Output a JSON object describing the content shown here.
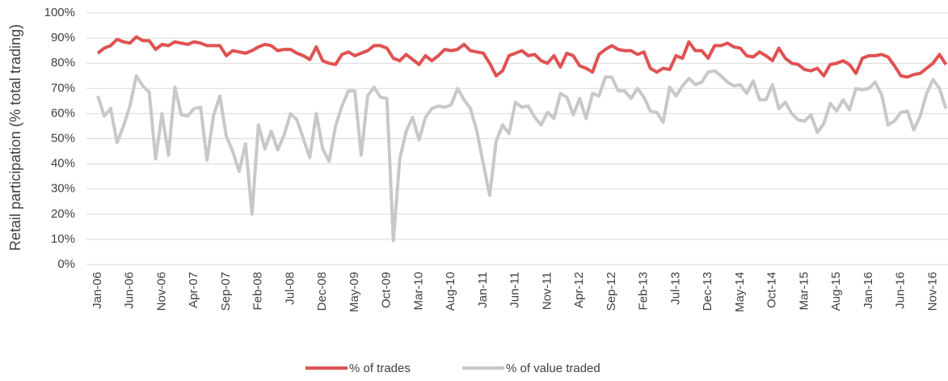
{
  "chart_data": {
    "type": "line",
    "y_label": "Retail participation (% total trading)",
    "categories": [
      "Jan-06",
      null,
      null,
      null,
      null,
      "Jun-06",
      null,
      null,
      null,
      null,
      "Nov-06",
      null,
      null,
      null,
      null,
      "Apr-07",
      null,
      null,
      null,
      null,
      "Sep-07",
      null,
      null,
      null,
      null,
      "Feb-08",
      null,
      null,
      null,
      null,
      "Jul-08",
      null,
      null,
      null,
      null,
      "Dec-08",
      null,
      null,
      null,
      null,
      "May-09",
      null,
      null,
      null,
      null,
      "Oct-09",
      null,
      null,
      null,
      null,
      "Mar-10",
      null,
      null,
      null,
      null,
      "Aug-10",
      null,
      null,
      null,
      null,
      "Jan-11",
      null,
      null,
      null,
      null,
      "Jun-11",
      null,
      null,
      null,
      null,
      "Nov-11",
      null,
      null,
      null,
      null,
      "Apr-12",
      null,
      null,
      null,
      null,
      "Sep-12",
      null,
      null,
      null,
      null,
      "Feb-13",
      null,
      null,
      null,
      null,
      "Jul-13",
      null,
      null,
      null,
      null,
      "Dec-13",
      null,
      null,
      null,
      null,
      "May-14",
      null,
      null,
      null,
      null,
      "Oct-14",
      null,
      null,
      null,
      null,
      "Mar-15",
      null,
      null,
      null,
      null,
      "Aug-15",
      null,
      null,
      null,
      null,
      "Jan-16",
      null,
      null,
      null,
      null,
      "Jun-16",
      null,
      null,
      null,
      null,
      "Nov-16",
      null,
      null
    ],
    "series": [
      {
        "name": "% of trades",
        "color": "#e05252",
        "values": [
          84,
          86,
          87,
          89.5,
          88.5,
          88,
          90.5,
          89,
          89,
          85.5,
          87.5,
          87,
          88.5,
          88,
          87.5,
          88.5,
          88,
          87,
          87,
          87,
          83,
          85,
          84.5,
          84,
          85,
          86.5,
          87.5,
          87,
          85,
          85.5,
          85.5,
          84,
          83,
          81.5,
          86.5,
          81,
          80,
          79.5,
          83.5,
          84.5,
          83,
          84,
          85,
          87,
          87,
          86,
          82,
          81,
          83.5,
          81.5,
          79.5,
          83,
          81,
          83,
          85.5,
          85,
          85.5,
          87.5,
          85,
          84.5,
          84,
          80,
          75,
          77,
          83,
          84,
          85,
          83,
          83.5,
          81,
          80,
          83,
          78.5,
          84,
          83,
          79,
          78,
          76.5,
          83.5,
          85.5,
          87,
          85.5,
          85,
          85,
          83.5,
          84.5,
          78,
          76.5,
          78,
          77.5,
          83,
          82,
          88.5,
          85,
          85,
          82,
          87,
          87,
          88,
          86.5,
          86,
          83,
          82.5,
          84.5,
          83,
          81,
          86,
          82,
          80,
          79.5,
          77.5,
          77,
          78,
          75,
          79.5,
          80,
          81,
          79.5,
          76,
          82,
          83,
          83,
          83.5,
          82.5,
          79,
          75,
          74.5,
          75.5,
          76,
          78,
          80,
          83.5,
          79.5
        ]
      },
      {
        "name": "% of value traded",
        "color": "#c8c8c8",
        "values": [
          67,
          59,
          62,
          48.5,
          55,
          63,
          75,
          71,
          68.5,
          42,
          60,
          43.5,
          70.5,
          59.5,
          59,
          62,
          62.5,
          41.5,
          59,
          67,
          51,
          45,
          37,
          48,
          20,
          55.5,
          46,
          53,
          45.5,
          51.5,
          60,
          57.5,
          50,
          42.5,
          60,
          46,
          41,
          55,
          63,
          69,
          69,
          43.5,
          67,
          70.5,
          66.5,
          66,
          9.5,
          42,
          53,
          58.5,
          49.5,
          58.5,
          62,
          63,
          62.5,
          63.5,
          70,
          65.5,
          62,
          53,
          40,
          27.5,
          49,
          55.5,
          52,
          64.5,
          62.5,
          63,
          58.5,
          55.5,
          60.5,
          58,
          68,
          66.5,
          59.5,
          66,
          58,
          68,
          67,
          74.5,
          74.5,
          69,
          69,
          66,
          70,
          66.5,
          61,
          60.5,
          56.5,
          70.5,
          67,
          71,
          74,
          71.5,
          72.5,
          76.5,
          77,
          75,
          72.5,
          71,
          71.5,
          68,
          73,
          65.5,
          65.5,
          71.5,
          62,
          64.5,
          60,
          57.5,
          57,
          59.5,
          52.5,
          56,
          64,
          61,
          65.5,
          61.5,
          70,
          69.5,
          70,
          72.5,
          67.5,
          55.5,
          57,
          60.5,
          61,
          53.5,
          59,
          68,
          73.5,
          70,
          62
        ]
      }
    ],
    "ylim": [
      0,
      100
    ],
    "yticks": [
      {
        "value": 0,
        "label": "0%"
      },
      {
        "value": 10,
        "label": "10%"
      },
      {
        "value": 20,
        "label": "20%"
      },
      {
        "value": 30,
        "label": "30%"
      },
      {
        "value": 40,
        "label": "40%"
      },
      {
        "value": 50,
        "label": "50%"
      },
      {
        "value": 60,
        "label": "60%"
      },
      {
        "value": 70,
        "label": "70%"
      },
      {
        "value": 80,
        "label": "80%"
      },
      {
        "value": 90,
        "label": "90%"
      },
      {
        "value": 100,
        "label": "100%"
      }
    ],
    "grid": true
  }
}
